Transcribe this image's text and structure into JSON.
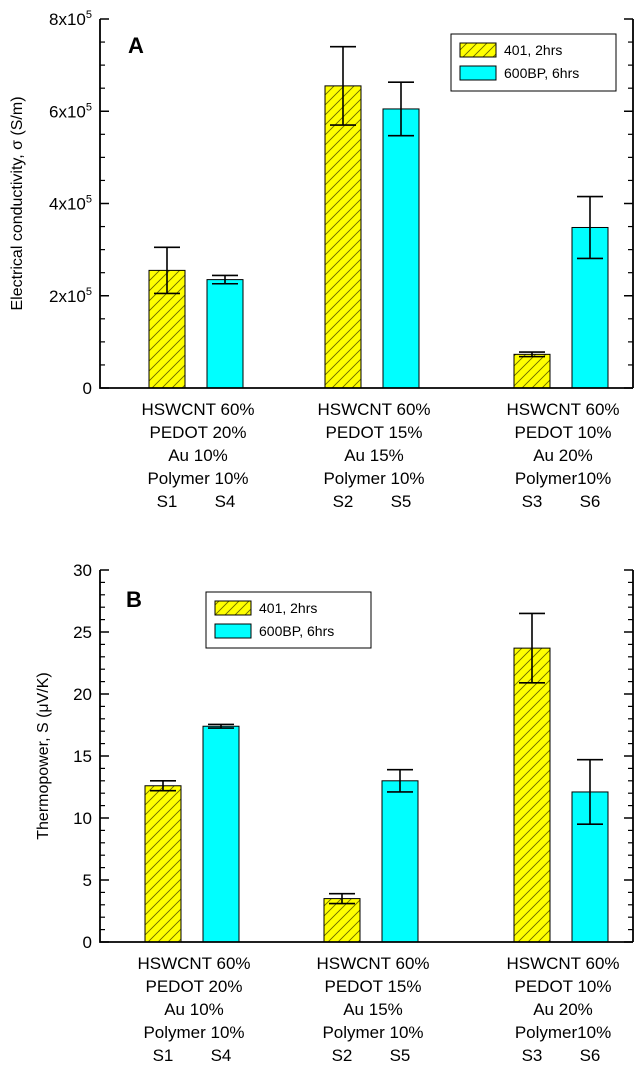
{
  "chart_data": [
    {
      "type": "bar",
      "panel": "A",
      "ylabel": "Electrical conductivity, σ (S/m)",
      "ylim": [
        0,
        800000
      ],
      "y_ticks": [
        {
          "value": 0,
          "label": "0",
          "exp": ""
        },
        {
          "value": 200000,
          "label": "2x10",
          "exp": "5"
        },
        {
          "value": 400000,
          "label": "4x10",
          "exp": "5"
        },
        {
          "value": 600000,
          "label": "6x10",
          "exp": "5"
        },
        {
          "value": 800000,
          "label": "8x10",
          "exp": "5"
        }
      ],
      "legend_position": "top-right",
      "groups": [
        {
          "lines": [
            "HSWCNT 60%",
            "PEDOT 20%",
            "Au 10%",
            "Polymer 10%"
          ],
          "samples": [
            "S1",
            "S4"
          ]
        },
        {
          "lines": [
            "HSWCNT 60%",
            "PEDOT 15%",
            "Au 15%",
            "Polymer 10%"
          ],
          "samples": [
            "S2",
            "S5"
          ]
        },
        {
          "lines": [
            "HSWCNT 60%",
            "PEDOT 10%",
            "Au 20%",
            "Polymer10%"
          ],
          "samples": [
            "S3",
            "S6"
          ]
        }
      ],
      "series": [
        {
          "name": "401, 2hrs",
          "color": "#ffff00",
          "pattern": "hatch",
          "values": [
            255000,
            655000,
            73000
          ],
          "errors": [
            50000,
            85000,
            5000
          ]
        },
        {
          "name": "600BP, 6hrs",
          "color": "#00ffff",
          "pattern": "solid",
          "values": [
            235000,
            605000,
            348000
          ],
          "errors": [
            9000,
            58000,
            67000
          ]
        }
      ]
    },
    {
      "type": "bar",
      "panel": "B",
      "ylabel": "Thermopower, S (μV/K)",
      "ylim": [
        0,
        30
      ],
      "y_ticks": [
        {
          "value": 0,
          "label": "0",
          "exp": ""
        },
        {
          "value": 5,
          "label": "5",
          "exp": ""
        },
        {
          "value": 10,
          "label": "10",
          "exp": ""
        },
        {
          "value": 15,
          "label": "15",
          "exp": ""
        },
        {
          "value": 20,
          "label": "20",
          "exp": ""
        },
        {
          "value": 25,
          "label": "25",
          "exp": ""
        },
        {
          "value": 30,
          "label": "30",
          "exp": ""
        }
      ],
      "legend_position": "top-left",
      "groups": [
        {
          "lines": [
            "HSWCNT 60%",
            "PEDOT 20%",
            "Au 10%",
            "Polymer 10%"
          ],
          "samples": [
            "S1",
            "S4"
          ]
        },
        {
          "lines": [
            "HSWCNT 60%",
            "PEDOT 15%",
            "Au 15%",
            "Polymer 10%"
          ],
          "samples": [
            "S2",
            "S5"
          ]
        },
        {
          "lines": [
            "HSWCNT 60%",
            "PEDOT 10%",
            "Au 20%",
            "Polymer10%"
          ],
          "samples": [
            "S3",
            "S6"
          ]
        }
      ],
      "series": [
        {
          "name": "401, 2hrs",
          "color": "#ffff00",
          "pattern": "hatch",
          "values": [
            12.6,
            3.5,
            23.7
          ],
          "errors": [
            0.4,
            0.4,
            2.8
          ]
        },
        {
          "name": "600BP, 6hrs",
          "color": "#00ffff",
          "pattern": "solid",
          "values": [
            17.4,
            13.0,
            12.1
          ],
          "errors": [
            0.15,
            0.9,
            2.6
          ]
        }
      ]
    }
  ]
}
